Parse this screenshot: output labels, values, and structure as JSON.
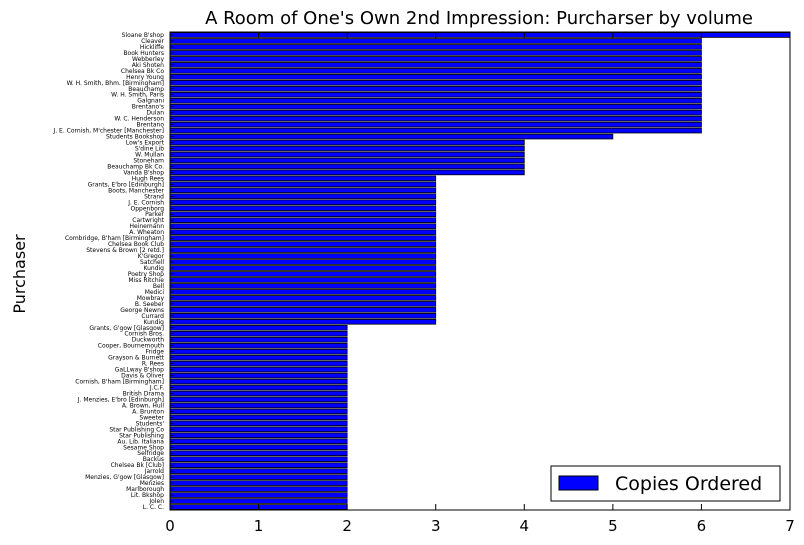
{
  "chart_data": {
    "type": "bar",
    "orientation": "horizontal",
    "title": "A Room of One's Own 2nd Impression: Purcharser by volume",
    "ylabel": "Purchaser",
    "xlabel": "",
    "xlim": [
      0,
      7
    ],
    "xticks": [
      0,
      1,
      2,
      3,
      4,
      5,
      6,
      7
    ],
    "grid": false,
    "legend_position": "bottom-right",
    "series": [
      {
        "name": "Copies Ordered",
        "color": "#0000ff"
      }
    ],
    "categories": [
      "Sloane B'shop",
      "Cleaver",
      "Hickliffe",
      "Book Hunters",
      "Webberley",
      "Aki Shoten",
      "Chelsea Bk Co",
      "Henry Young",
      "W. H. Smith, Bhm. [Birmingham]",
      "Beauchamp",
      "W. H. Smith, Paris",
      "Galgnani",
      "Brentano's",
      "Dulan",
      "W. C. Henderson",
      "Brentano",
      "J. E. Cornish, M'chester [Manchester]",
      "Students Bookshop",
      "Low's Export",
      "S'dine Lib",
      "W. Mullan",
      "Stoneham",
      "Beauchamp Bk Co.",
      "Vanda B'shop",
      "Hugh Rees",
      "Grants, E'bro [Edinburgh]",
      "Boots, Manchester",
      "Strand",
      "J. E. Cornish",
      "Oppenborg",
      "Parker",
      "Cartwright",
      "Heinemann",
      "A. Wheaton",
      "Combridge, B'ham [Birmingham]",
      "Chelsea Book Club",
      "Stevens & Brown [2 retd.]",
      "K'Gregor",
      "Satchell",
      "Kundig",
      "Poetry Shop",
      "Miss Ritchie",
      "Bell",
      "Medici",
      "Mowbray",
      "B. Seeber",
      "George Newns",
      "Currard",
      "Kundig",
      "Grants, G'gow [Glasgow]",
      "Cornish Bros.",
      "Duckworth",
      "Cooper, Bournemouth",
      "Fridge",
      "Grayson & Burnett",
      "R. Rees",
      "GaLLway B'shop",
      "Davis & Oliver",
      "Cornish, B'ham [Birmingham]",
      "J.C.F.",
      "British Drama",
      "J. Menzies, E'bro [Edinburgh]",
      "A. Brown, Hull",
      "A. Brunton",
      "Sweeter",
      "Students'",
      "Star Publishing Co",
      "Star Publishing",
      "Au. Lib. Italiana",
      "Sesame Shop",
      "Selfridge",
      "Backus",
      "Chelsea Bk [Club]",
      "Jarrold",
      "Menzies, G'gow [Glasgow]",
      "Menzies",
      "Marlborough",
      "Lit. Bkshop",
      "Jolen",
      "L. C. C."
    ],
    "values": [
      7,
      6,
      6,
      6,
      6,
      6,
      6,
      6,
      6,
      6,
      6,
      6,
      6,
      6,
      6,
      6,
      6,
      5,
      4,
      4,
      4,
      4,
      4,
      4,
      3,
      3,
      3,
      3,
      3,
      3,
      3,
      3,
      3,
      3,
      3,
      3,
      3,
      3,
      3,
      3,
      3,
      3,
      3,
      3,
      3,
      3,
      3,
      3,
      3,
      2,
      2,
      2,
      2,
      2,
      2,
      2,
      2,
      2,
      2,
      2,
      2,
      2,
      2,
      2,
      2,
      2,
      2,
      2,
      2,
      2,
      2,
      2,
      2,
      2,
      2,
      2,
      2,
      2,
      2,
      2
    ]
  }
}
